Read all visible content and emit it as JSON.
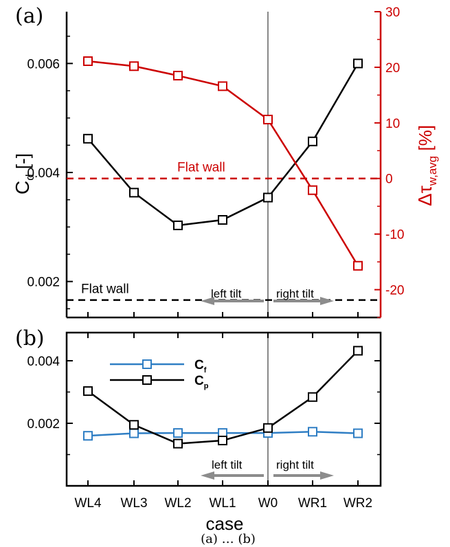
{
  "colors": {
    "black": "#000000",
    "red": "#cc0000",
    "blue": "#2f7ec4",
    "gray": "#888888",
    "arrow": "#8c8c8c"
  },
  "figure": {
    "caption_partial": "(a) … (b)"
  },
  "chart_data": [
    {
      "panel": "(a)",
      "type": "line",
      "categories": [
        "WL4",
        "WL3",
        "WL2",
        "WL1",
        "W0",
        "WR1",
        "WR2"
      ],
      "ylabel_left": {
        "main": "C",
        "sub": "d",
        "tail": " [-]"
      },
      "ylabel_right": {
        "main": "Δτ",
        "sub": "w,avg",
        "tail": " [%]"
      },
      "yticks_left": [
        "0.006",
        "0.004",
        "0.002"
      ],
      "yticks_left_values": [
        0.006,
        0.004,
        0.002
      ],
      "yticks_right": [
        "30",
        "20",
        "10",
        "0",
        "-10",
        "-20"
      ],
      "yticks_right_values": [
        30,
        20,
        10,
        0,
        -10,
        -20
      ],
      "ylim_left": [
        0.00134,
        0.00695
      ],
      "ylim_right": [
        -25,
        30
      ],
      "grid": false,
      "series": [
        {
          "axis": "left",
          "color": "black",
          "marker": "square",
          "values": [
            0.00462,
            0.00363,
            0.00303,
            0.00313,
            0.00354,
            0.00457,
            0.006
          ]
        },
        {
          "axis": "right",
          "color": "red",
          "marker": "square",
          "values": [
            21.1,
            20.2,
            18.5,
            16.6,
            10.6,
            -2.1,
            -15.7
          ]
        }
      ],
      "reference_lines": [
        {
          "label": "Flat wall",
          "axis": "right",
          "value": 0,
          "color": "red",
          "style": "dashed"
        },
        {
          "label": "Flat wall",
          "axis": "left",
          "value": 0.00166,
          "color": "black",
          "style": "dashed"
        }
      ],
      "vertical_line": {
        "category": "W0",
        "color": "gray"
      },
      "annotations": {
        "left": "left tilt",
        "right": "right tilt"
      }
    },
    {
      "panel": "(b)",
      "type": "line",
      "categories": [
        "WL4",
        "WL3",
        "WL2",
        "WL1",
        "W0",
        "WR1",
        "WR2"
      ],
      "xlabel": "case",
      "yticks": [
        "0.004",
        "0.002"
      ],
      "yticks_values": [
        0.004,
        0.002
      ],
      "ylim": [
        0,
        0.0049
      ],
      "grid": false,
      "legend": "upper-left",
      "series": [
        {
          "name": "C",
          "sub": "f",
          "color": "blue",
          "marker": "square",
          "values": [
            0.0016,
            0.00168,
            0.00169,
            0.00169,
            0.00169,
            0.00173,
            0.00168
          ]
        },
        {
          "name": "C",
          "sub": "p",
          "color": "black",
          "marker": "square",
          "values": [
            0.00303,
            0.00195,
            0.00135,
            0.00145,
            0.00185,
            0.00284,
            0.00432
          ]
        }
      ],
      "vertical_line": {
        "category": "W0",
        "color": "gray"
      },
      "annotations": {
        "left": "left tilt",
        "right": "right tilt"
      }
    }
  ]
}
